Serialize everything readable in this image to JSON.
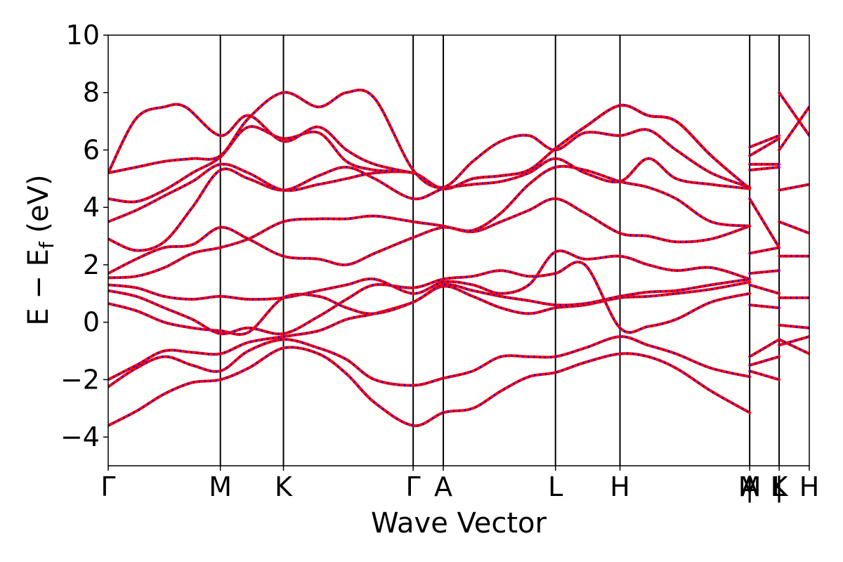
{
  "chart_data": {
    "type": "line",
    "title": "",
    "xlabel": "Wave Vector",
    "ylabel": "E − E",
    "ylabel_subscript": "f",
    "ylabel_units": " (eV)",
    "ylim": [
      -5,
      10
    ],
    "yticks": [
      -4,
      -2,
      0,
      2,
      4,
      6,
      8,
      10
    ],
    "ytick_labels": [
      "−4",
      "−2",
      "0",
      "2",
      "4",
      "6",
      "8",
      "10"
    ],
    "grid": false,
    "legend": "none",
    "kpath_segments": [
      {
        "from": "Γ",
        "to": "M",
        "x0": 0.0,
        "x1": 0.16
      },
      {
        "from": "M",
        "to": "K",
        "x0": 0.16,
        "x1": 0.25
      },
      {
        "from": "K",
        "to": "Γ",
        "x0": 0.25,
        "x1": 0.435
      },
      {
        "from": "Γ",
        "to": "A",
        "x0": 0.435,
        "x1": 0.478
      },
      {
        "from": "A",
        "to": "L",
        "x0": 0.478,
        "x1": 0.638
      },
      {
        "from": "L",
        "to": "H",
        "x0": 0.638,
        "x1": 0.73
      },
      {
        "from": "H",
        "to": "A",
        "x0": 0.73,
        "x1": 0.915
      },
      {
        "from": "L",
        "to": "M",
        "x0": 0.915,
        "x1": 0.957
      },
      {
        "from": "K",
        "to": "H",
        "x0": 0.957,
        "x1": 1.0
      }
    ],
    "high_symmetry_points": [
      {
        "label": "Γ",
        "x": 0.0
      },
      {
        "label": "M",
        "x": 0.16
      },
      {
        "label": "K",
        "x": 0.25
      },
      {
        "label": "Γ",
        "x": 0.435
      },
      {
        "label": "A",
        "x": 0.478
      },
      {
        "label": "L",
        "x": 0.638
      },
      {
        "label": "H",
        "x": 0.73
      },
      {
        "label": "A",
        "x": 0.915
      },
      {
        "label": "M",
        "x": 0.915
      },
      {
        "label": "|",
        "x": 0.915
      },
      {
        "label": "L",
        "x": 0.957
      },
      {
        "label": "|",
        "x": 0.957
      },
      {
        "label": "K",
        "x": 0.957
      },
      {
        "label": "H",
        "x": 1.0
      }
    ],
    "series": [
      {
        "color": "#ff0000",
        "style": "solid",
        "width": 4
      },
      {
        "color": "#0000ff",
        "style": "dotted",
        "width": 3
      }
    ],
    "bands": [
      {
        "x": [
          0.0,
          0.04,
          0.08,
          0.12,
          0.16,
          0.2,
          0.25,
          0.3,
          0.34,
          0.38,
          0.435,
          0.478,
          0.52,
          0.56,
          0.6,
          0.638,
          0.68,
          0.73,
          0.77,
          0.81,
          0.86,
          0.915
        ],
        "y": [
          -3.6,
          -3.1,
          -2.5,
          -2.1,
          -2.0,
          -1.6,
          -0.9,
          -1.1,
          -1.8,
          -2.8,
          -3.6,
          -3.15,
          -3.0,
          -2.4,
          -1.9,
          -1.75,
          -1.4,
          -1.1,
          -1.2,
          -1.6,
          -2.4,
          -3.15
        ]
      },
      {
        "x": [
          0.0,
          0.04,
          0.08,
          0.12,
          0.16,
          0.2,
          0.25,
          0.3,
          0.34,
          0.38,
          0.435,
          0.478,
          0.52,
          0.56,
          0.6,
          0.638,
          0.68,
          0.73,
          0.77,
          0.81,
          0.86,
          0.915
        ],
        "y": [
          -2.25,
          -1.6,
          -1.2,
          -1.5,
          -1.7,
          -1.0,
          -0.6,
          -0.9,
          -1.3,
          -2.0,
          -2.2,
          -1.95,
          -1.7,
          -1.2,
          -1.2,
          -1.2,
          -0.9,
          -0.5,
          -0.8,
          -1.1,
          -1.6,
          -1.9
        ]
      },
      {
        "x": [
          0.0,
          0.04,
          0.08,
          0.12,
          0.16,
          0.2,
          0.25,
          0.3,
          0.34,
          0.38,
          0.435,
          0.478,
          0.52,
          0.56,
          0.6,
          0.638,
          0.68,
          0.73,
          0.77,
          0.81,
          0.86,
          0.915
        ],
        "y": [
          -2.0,
          -1.5,
          -1.0,
          -1.05,
          -1.1,
          -0.7,
          -0.5,
          -0.3,
          0.1,
          0.3,
          0.7,
          1.25,
          0.9,
          0.5,
          0.3,
          0.5,
          0.6,
          0.85,
          0.9,
          1.0,
          1.15,
          1.4
        ]
      },
      {
        "x": [
          0.0,
          0.04,
          0.08,
          0.12,
          0.16,
          0.2,
          0.25,
          0.3,
          0.34,
          0.38,
          0.435,
          0.478,
          0.52,
          0.56,
          0.6,
          0.638,
          0.68,
          0.73,
          0.77,
          0.81,
          0.86,
          0.915
        ],
        "y": [
          0.65,
          0.4,
          0.0,
          -0.2,
          -0.3,
          -0.35,
          0.85,
          0.9,
          0.5,
          0.3,
          0.7,
          1.3,
          1.1,
          0.9,
          0.75,
          0.6,
          0.65,
          0.9,
          1.05,
          1.1,
          1.3,
          1.5
        ]
      },
      {
        "x": [
          0.0,
          0.04,
          0.08,
          0.12,
          0.16,
          0.2,
          0.25,
          0.3,
          0.34,
          0.38,
          0.435,
          0.478,
          0.52,
          0.56,
          0.6,
          0.638,
          0.68,
          0.73,
          0.77,
          0.81,
          0.86,
          0.915
        ],
        "y": [
          1.1,
          0.9,
          0.5,
          0.1,
          -0.4,
          -0.2,
          -0.4,
          0.2,
          0.8,
          1.3,
          1.2,
          1.5,
          1.6,
          1.8,
          1.6,
          1.7,
          2.0,
          -0.2,
          -0.15,
          0.1,
          0.7,
          1.0
        ]
      },
      {
        "x": [
          0.0,
          0.04,
          0.08,
          0.12,
          0.16,
          0.2,
          0.25,
          0.3,
          0.34,
          0.38,
          0.435,
          0.478,
          0.52,
          0.56,
          0.6,
          0.638,
          0.68,
          0.73,
          0.77,
          0.81,
          0.86,
          0.915
        ],
        "y": [
          1.3,
          1.2,
          0.9,
          0.8,
          0.9,
          0.8,
          0.85,
          1.1,
          1.3,
          1.5,
          1.0,
          1.4,
          1.3,
          1.0,
          1.3,
          2.45,
          2.2,
          2.3,
          2.0,
          1.8,
          1.9,
          1.5
        ]
      },
      {
        "x": [
          0.0,
          0.04,
          0.08,
          0.12,
          0.16,
          0.2,
          0.25,
          0.3,
          0.34,
          0.38,
          0.435,
          0.478,
          0.52,
          0.56,
          0.6,
          0.638,
          0.68,
          0.73,
          0.77,
          0.81,
          0.86,
          0.915
        ],
        "y": [
          1.55,
          1.6,
          1.9,
          2.4,
          2.6,
          2.9,
          3.5,
          3.6,
          3.6,
          3.7,
          3.5,
          3.35,
          3.15,
          3.5,
          3.9,
          4.3,
          3.8,
          3.1,
          3.0,
          2.8,
          2.9,
          3.35
        ]
      },
      {
        "x": [
          0.0,
          0.04,
          0.08,
          0.12,
          0.16,
          0.2,
          0.25,
          0.3,
          0.34,
          0.38,
          0.435,
          0.478,
          0.52,
          0.56,
          0.6,
          0.638,
          0.68,
          0.73,
          0.77,
          0.81,
          0.86,
          0.915
        ],
        "y": [
          1.7,
          2.2,
          2.6,
          2.7,
          3.3,
          2.9,
          2.3,
          2.2,
          2.0,
          2.4,
          2.95,
          3.3,
          3.2,
          3.8,
          4.8,
          5.4,
          5.3,
          4.9,
          4.7,
          4.3,
          3.5,
          3.35
        ]
      },
      {
        "x": [
          0.0,
          0.04,
          0.08,
          0.12,
          0.16,
          0.2,
          0.25,
          0.3,
          0.34,
          0.38,
          0.435,
          0.478,
          0.52,
          0.56,
          0.6,
          0.638,
          0.68,
          0.73,
          0.77,
          0.81,
          0.86,
          0.915
        ],
        "y": [
          2.9,
          2.5,
          2.8,
          4.0,
          5.3,
          5.0,
          4.6,
          5.1,
          5.4,
          5.0,
          4.3,
          4.65,
          4.8,
          4.9,
          5.2,
          5.7,
          5.2,
          4.9,
          5.7,
          5.0,
          4.8,
          4.65
        ]
      },
      {
        "x": [
          0.0,
          0.04,
          0.08,
          0.12,
          0.16,
          0.2,
          0.25,
          0.3,
          0.34,
          0.38,
          0.435,
          0.478,
          0.52,
          0.56,
          0.6,
          0.638,
          0.68,
          0.73,
          0.77,
          0.81,
          0.86,
          0.915
        ],
        "y": [
          3.5,
          3.9,
          4.4,
          4.9,
          5.5,
          5.2,
          4.6,
          4.8,
          5.0,
          5.2,
          5.2,
          4.7,
          5.6,
          6.3,
          6.5,
          6.0,
          6.6,
          6.5,
          6.7,
          6.0,
          5.2,
          4.7
        ]
      },
      {
        "x": [
          0.0,
          0.04,
          0.08,
          0.12,
          0.16,
          0.2,
          0.25,
          0.3,
          0.34,
          0.38,
          0.435,
          0.478,
          0.52,
          0.56,
          0.6,
          0.638,
          0.68,
          0.73,
          0.77,
          0.81,
          0.86,
          0.915
        ],
        "y": [
          4.3,
          4.2,
          4.6,
          5.2,
          5.75,
          6.8,
          6.4,
          6.6,
          5.6,
          5.3,
          5.2,
          4.65,
          5.0,
          5.1,
          5.3,
          6.05,
          6.8,
          7.55,
          7.2,
          7.0,
          5.8,
          4.65
        ]
      },
      {
        "x": [
          0.0,
          0.04,
          0.08,
          0.12,
          0.16,
          0.2,
          0.25,
          0.3,
          0.34,
          0.38,
          0.435,
          0.478,
          0.52,
          0.56,
          0.6,
          0.638,
          0.68,
          0.73,
          0.77,
          0.81,
          0.86,
          0.915
        ],
        "y": [
          5.2,
          5.4,
          5.6,
          5.7,
          5.8,
          7.1,
          8.0,
          7.5,
          8.0,
          7.8,
          5.3,
          4.65,
          5.0,
          5.1,
          5.3,
          6.05,
          6.8,
          7.55,
          7.2,
          7.0,
          5.8,
          4.65
        ]
      },
      {
        "x": [
          0.0,
          0.04,
          0.08,
          0.11,
          0.16,
          0.2,
          0.25,
          0.3,
          0.34,
          0.38,
          0.435
        ],
        "y": [
          5.2,
          7.1,
          7.5,
          7.5,
          6.5,
          7.2,
          6.3,
          6.8,
          6.0,
          5.5,
          5.2
        ]
      },
      {
        "x": [
          0.915,
          0.957
        ],
        "y": [
          4.3,
          2.6
        ]
      },
      {
        "x": [
          0.915,
          0.957
        ],
        "y": [
          2.4,
          2.6
        ]
      },
      {
        "x": [
          0.915,
          0.957
        ],
        "y": [
          1.7,
          1.8
        ]
      },
      {
        "x": [
          0.915,
          0.957
        ],
        "y": [
          1.3,
          1.0
        ]
      },
      {
        "x": [
          0.915,
          0.957
        ],
        "y": [
          0.6,
          0.5
        ]
      },
      {
        "x": [
          0.915,
          0.957
        ],
        "y": [
          -1.2,
          -0.6
        ]
      },
      {
        "x": [
          0.915,
          0.957
        ],
        "y": [
          -1.5,
          -1.2
        ]
      },
      {
        "x": [
          0.915,
          0.957
        ],
        "y": [
          -1.7,
          -2.0
        ]
      },
      {
        "x": [
          0.915,
          0.957
        ],
        "y": [
          5.3,
          5.4
        ]
      },
      {
        "x": [
          0.915,
          0.957
        ],
        "y": [
          5.5,
          5.5
        ]
      },
      {
        "x": [
          0.915,
          0.957
        ],
        "y": [
          5.8,
          6.4
        ]
      },
      {
        "x": [
          0.915,
          0.957
        ],
        "y": [
          6.1,
          6.5
        ]
      },
      {
        "x": [
          0.957,
          1.0
        ],
        "y": [
          8.0,
          6.5
        ]
      },
      {
        "x": [
          0.957,
          1.0
        ],
        "y": [
          6.0,
          7.5
        ]
      },
      {
        "x": [
          0.957,
          1.0
        ],
        "y": [
          4.6,
          4.8
        ]
      },
      {
        "x": [
          0.957,
          1.0
        ],
        "y": [
          3.5,
          3.1
        ]
      },
      {
        "x": [
          0.957,
          1.0
        ],
        "y": [
          2.3,
          2.3
        ]
      },
      {
        "x": [
          0.957,
          1.0
        ],
        "y": [
          0.85,
          0.85
        ]
      },
      {
        "x": [
          0.957,
          1.0
        ],
        "y": [
          -0.1,
          -0.2
        ]
      },
      {
        "x": [
          0.957,
          1.0
        ],
        "y": [
          -0.8,
          -0.5
        ]
      },
      {
        "x": [
          0.957,
          1.0
        ],
        "y": [
          -0.6,
          -1.1
        ]
      }
    ]
  }
}
